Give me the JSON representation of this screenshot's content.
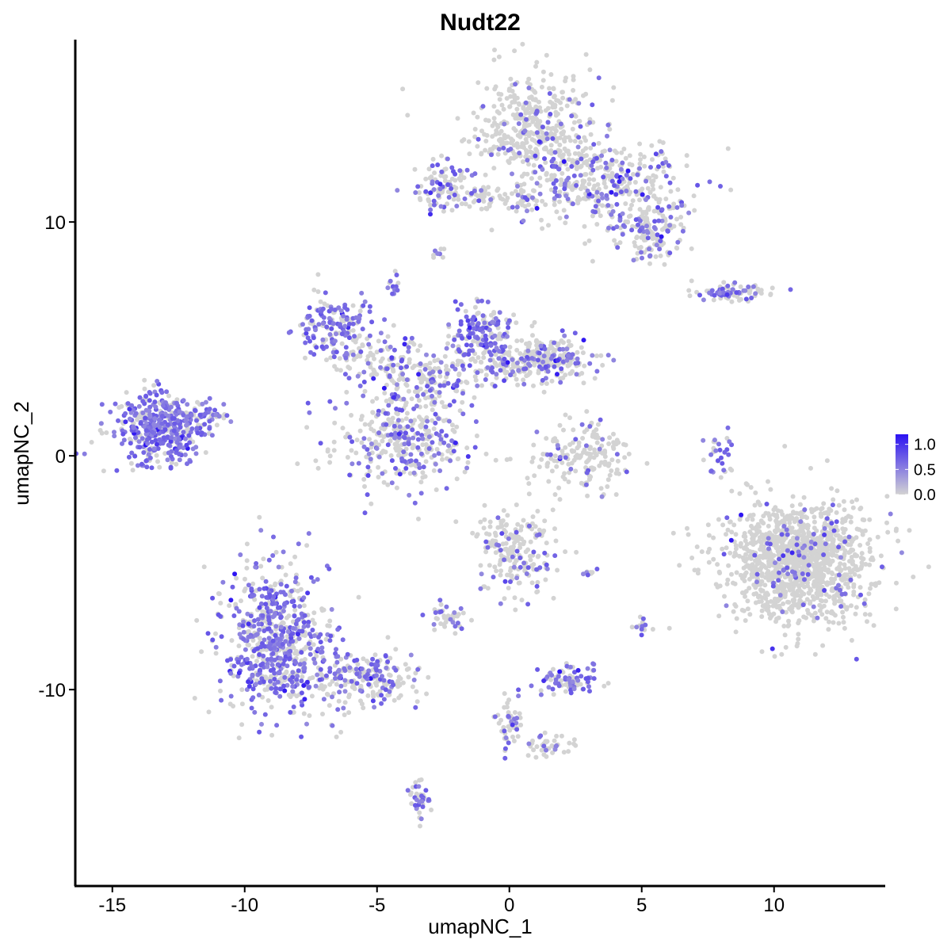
{
  "chart_data": {
    "type": "scatter",
    "title": "Nudt22",
    "xlabel": "umapNC_1",
    "ylabel": "umapNC_2",
    "xlim": [
      -16.4,
      14.2
    ],
    "ylim": [
      -18.4,
      17.8
    ],
    "x_ticks": [
      -15,
      -10,
      -5,
      0,
      5,
      10
    ],
    "x_tick_labels": [
      "-15",
      "-10",
      "-5",
      "0",
      "5",
      "10"
    ],
    "y_ticks": [
      -10,
      0,
      10
    ],
    "y_tick_labels": [
      "-10",
      "0",
      "10"
    ],
    "color_scale": {
      "low": "#d3d3d3",
      "high": "#2b12f2",
      "min": 0.0,
      "max": 1.2,
      "ticks": [
        0.0,
        0.5,
        1.0
      ],
      "tick_labels": [
        "0.0",
        "0.5",
        "1.0"
      ],
      "placement": "right"
    },
    "grid": false,
    "clusters": [
      {
        "cx": 1.0,
        "cy": 14.0,
        "sx": 1.2,
        "sy": 1.2,
        "n": 420,
        "expr_frac": 0.12
      },
      {
        "cx": 3.6,
        "cy": 11.7,
        "sx": 1.5,
        "sy": 0.9,
        "n": 360,
        "expr_frac": 0.28
      },
      {
        "cx": 5.4,
        "cy": 9.8,
        "sx": 0.7,
        "sy": 0.7,
        "n": 160,
        "expr_frac": 0.3
      },
      {
        "cx": -2.5,
        "cy": 11.5,
        "sx": 0.6,
        "sy": 0.5,
        "n": 90,
        "expr_frac": 0.45
      },
      {
        "cx": -0.2,
        "cy": 11.0,
        "sx": 1.4,
        "sy": 0.25,
        "n": 80,
        "expr_frac": 0.3
      },
      {
        "cx": -2.7,
        "cy": 8.8,
        "sx": 0.15,
        "sy": 0.2,
        "n": 8,
        "expr_frac": 0.5
      },
      {
        "cx": -4.4,
        "cy": 7.3,
        "sx": 0.15,
        "sy": 0.25,
        "n": 14,
        "expr_frac": 0.6
      },
      {
        "cx": -6.6,
        "cy": 5.5,
        "sx": 0.7,
        "sy": 0.6,
        "n": 150,
        "expr_frac": 0.6
      },
      {
        "cx": -4.8,
        "cy": 4.1,
        "sx": 0.9,
        "sy": 0.6,
        "n": 120,
        "expr_frac": 0.35
      },
      {
        "cx": -2.8,
        "cy": 3.4,
        "sx": 0.9,
        "sy": 0.6,
        "n": 140,
        "expr_frac": 0.25
      },
      {
        "cx": -1.0,
        "cy": 5.4,
        "sx": 0.6,
        "sy": 0.6,
        "n": 130,
        "expr_frac": 0.55
      },
      {
        "cx": 0.3,
        "cy": 4.0,
        "sx": 1.2,
        "sy": 0.5,
        "n": 220,
        "expr_frac": 0.3
      },
      {
        "cx": 1.8,
        "cy": 4.2,
        "sx": 0.7,
        "sy": 0.45,
        "n": 110,
        "expr_frac": 0.4
      },
      {
        "cx": -4.0,
        "cy": 0.6,
        "sx": 1.2,
        "sy": 1.0,
        "n": 360,
        "expr_frac": 0.35
      },
      {
        "cx": -13.3,
        "cy": 1.2,
        "sx": 0.85,
        "sy": 0.75,
        "n": 420,
        "expr_frac": 0.7
      },
      {
        "cx": -11.6,
        "cy": 1.6,
        "sx": 0.5,
        "sy": 0.4,
        "n": 60,
        "expr_frac": 0.55
      },
      {
        "cx": 8.4,
        "cy": 7.0,
        "sx": 0.8,
        "sy": 0.2,
        "n": 80,
        "expr_frac": 0.45
      },
      {
        "cx": 2.7,
        "cy": 0.0,
        "sx": 0.9,
        "sy": 0.7,
        "n": 180,
        "expr_frac": 0.15
      },
      {
        "cx": 8.0,
        "cy": 0.0,
        "sx": 0.25,
        "sy": 0.6,
        "n": 30,
        "expr_frac": 0.6
      },
      {
        "cx": 11.0,
        "cy": -4.5,
        "sx": 1.4,
        "sy": 1.3,
        "n": 1300,
        "expr_frac": 0.07
      },
      {
        "cx": 0.3,
        "cy": -4.0,
        "sx": 0.7,
        "sy": 0.9,
        "n": 200,
        "expr_frac": 0.15
      },
      {
        "cx": -2.3,
        "cy": -7.0,
        "sx": 0.4,
        "sy": 0.3,
        "n": 40,
        "expr_frac": 0.35
      },
      {
        "cx": -8.8,
        "cy": -7.8,
        "sx": 1.0,
        "sy": 1.6,
        "n": 700,
        "expr_frac": 0.55
      },
      {
        "cx": -5.3,
        "cy": -9.6,
        "sx": 1.0,
        "sy": 0.6,
        "n": 200,
        "expr_frac": 0.35
      },
      {
        "cx": 2.3,
        "cy": -9.6,
        "sx": 0.5,
        "sy": 0.3,
        "n": 90,
        "expr_frac": 0.6
      },
      {
        "cx": 0.0,
        "cy": -11.5,
        "sx": 0.3,
        "sy": 0.6,
        "n": 50,
        "expr_frac": 0.3
      },
      {
        "cx": 1.5,
        "cy": -12.4,
        "sx": 0.6,
        "sy": 0.25,
        "n": 40,
        "expr_frac": 0.3
      },
      {
        "cx": -3.3,
        "cy": -14.6,
        "sx": 0.2,
        "sy": 0.5,
        "n": 40,
        "expr_frac": 0.5
      },
      {
        "cx": 5.0,
        "cy": -7.3,
        "sx": 0.15,
        "sy": 0.2,
        "n": 14,
        "expr_frac": 0.4
      },
      {
        "cx": 3.0,
        "cy": -5.0,
        "sx": 0.2,
        "sy": 0.1,
        "n": 8,
        "expr_frac": 0.5
      }
    ]
  }
}
